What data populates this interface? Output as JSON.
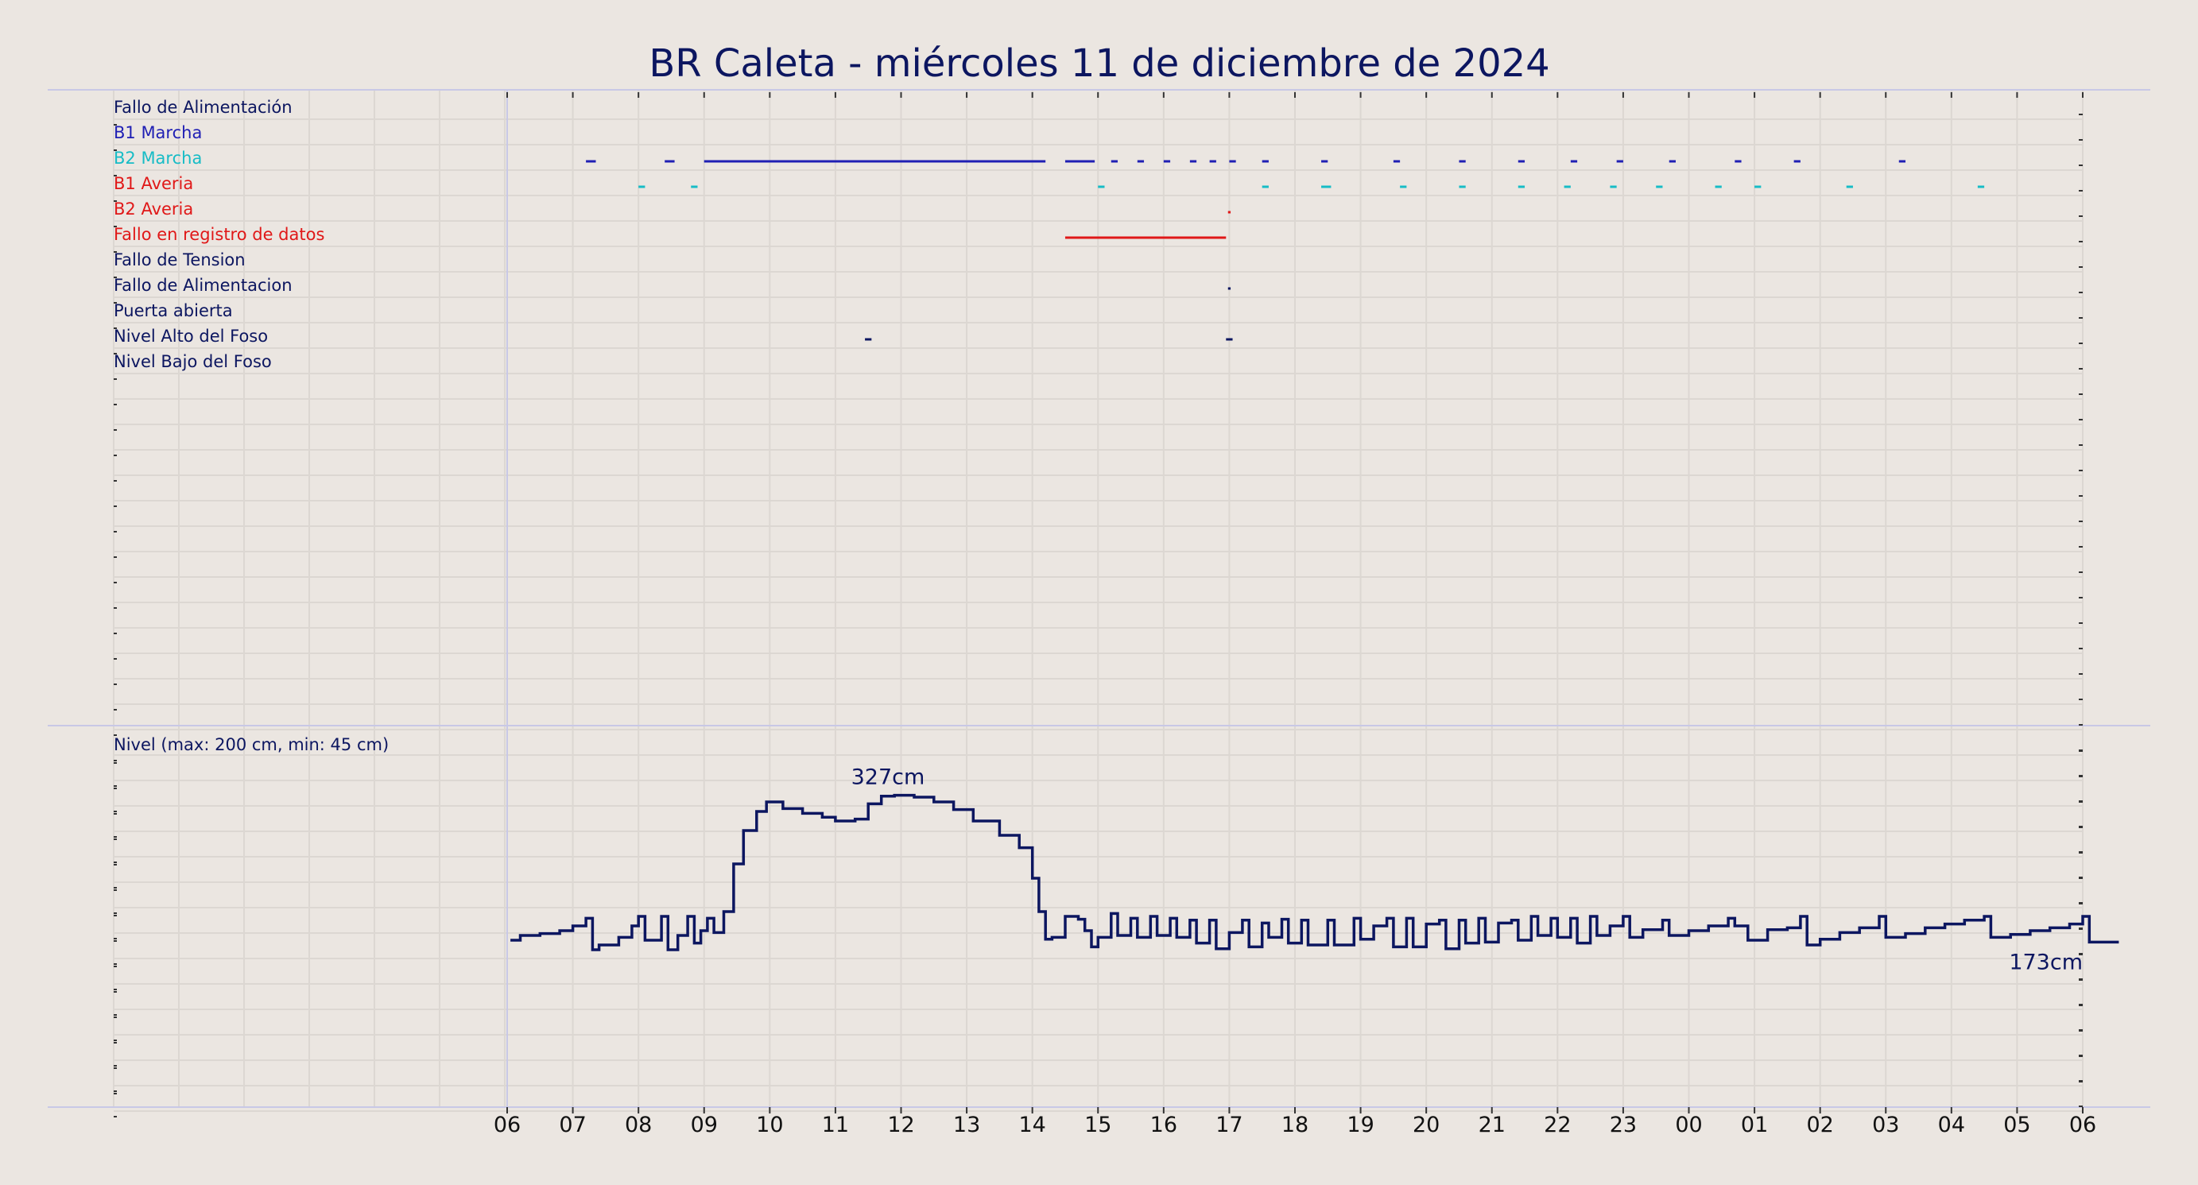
{
  "chart_data": {
    "type": "line",
    "title": "BR Caleta   -   miércoles 11 de diciembre de 2024",
    "x_axis": {
      "tick_labels": [
        "06",
        "07",
        "08",
        "09",
        "10",
        "11",
        "12",
        "13",
        "14",
        "15",
        "16",
        "17",
        "18",
        "19",
        "20",
        "21",
        "22",
        "23",
        "00",
        "01",
        "02",
        "03",
        "04",
        "05",
        "06"
      ],
      "range_hours": [
        0,
        24
      ]
    },
    "signals": [
      {
        "name": "Fallo de Alimentación",
        "color": "#0c1660",
        "segments": []
      },
      {
        "name": "B1 Marcha",
        "color": "#1f1fb4",
        "segments": [
          [
            1.2,
            1.35
          ],
          [
            2.4,
            2.55
          ],
          [
            3.0,
            8.2
          ],
          [
            8.5,
            8.95
          ],
          [
            9.2,
            9.3
          ],
          [
            9.6,
            9.7
          ],
          [
            10.0,
            10.1
          ],
          [
            10.4,
            10.5
          ],
          [
            10.7,
            10.8
          ],
          [
            11.0,
            11.1
          ],
          [
            11.5,
            11.6
          ],
          [
            12.4,
            12.5
          ],
          [
            13.5,
            13.6
          ],
          [
            14.5,
            14.6
          ],
          [
            15.4,
            15.5
          ],
          [
            16.2,
            16.3
          ],
          [
            16.9,
            17.0
          ],
          [
            17.7,
            17.8
          ],
          [
            18.7,
            18.8
          ],
          [
            19.6,
            19.7
          ],
          [
            21.2,
            21.3
          ]
        ]
      },
      {
        "name": "B2 Marcha",
        "color": "#17bcc6",
        "segments": [
          [
            2.0,
            2.1
          ],
          [
            2.8,
            2.9
          ],
          [
            9.0,
            9.1
          ],
          [
            11.5,
            11.6
          ],
          [
            12.4,
            12.55
          ],
          [
            13.6,
            13.7
          ],
          [
            14.5,
            14.6
          ],
          [
            15.4,
            15.5
          ],
          [
            16.1,
            16.2
          ],
          [
            16.8,
            16.9
          ],
          [
            17.5,
            17.6
          ],
          [
            18.4,
            18.5
          ],
          [
            19.0,
            19.1
          ],
          [
            20.4,
            20.5
          ],
          [
            22.4,
            22.5
          ]
        ]
      },
      {
        "name": "B1 Averia",
        "color": "#e01818",
        "segments": [
          [
            10.98,
            11.02
          ]
        ]
      },
      {
        "name": "B2 Averia",
        "color": "#e01818",
        "segments": [
          [
            8.5,
            10.95
          ]
        ]
      },
      {
        "name": "Fallo en registro de datos",
        "color": "#e01818",
        "segments": []
      },
      {
        "name": "Fallo de Tension",
        "color": "#0c1660",
        "segments": [
          [
            10.98,
            11.02
          ]
        ]
      },
      {
        "name": "Fallo de Alimentacion",
        "color": "#0c1660",
        "segments": []
      },
      {
        "name": "Puerta abierta",
        "color": "#0c1660",
        "segments": [
          [
            5.45,
            5.55
          ],
          [
            10.95,
            11.05
          ]
        ]
      },
      {
        "name": "Nivel Alto del Foso",
        "color": "#0c1660",
        "segments": []
      },
      {
        "name": "Nivel Bajo del Foso",
        "color": "#0c1660",
        "segments": []
      }
    ],
    "level": {
      "label": "Nivel (max: 200 cm, min: 45 cm)",
      "unit": "cm",
      "line_color": "#0c1660",
      "max_label": "327cm",
      "last_label": "173cm",
      "max_value_hour": 5.8,
      "y_range": [
        0,
        400
      ],
      "points": [
        [
          0.05,
          175
        ],
        [
          0.2,
          180
        ],
        [
          0.5,
          182
        ],
        [
          0.8,
          185
        ],
        [
          1.0,
          190
        ],
        [
          1.2,
          198
        ],
        [
          1.3,
          165
        ],
        [
          1.4,
          170
        ],
        [
          1.7,
          178
        ],
        [
          1.9,
          190
        ],
        [
          2.0,
          200
        ],
        [
          2.1,
          175
        ],
        [
          2.35,
          200
        ],
        [
          2.45,
          165
        ],
        [
          2.6,
          180
        ],
        [
          2.75,
          200
        ],
        [
          2.85,
          172
        ],
        [
          2.95,
          185
        ],
        [
          3.05,
          198
        ],
        [
          3.15,
          183
        ],
        [
          3.3,
          205
        ],
        [
          3.45,
          255
        ],
        [
          3.6,
          290
        ],
        [
          3.8,
          310
        ],
        [
          3.95,
          320
        ],
        [
          4.2,
          313
        ],
        [
          4.5,
          308
        ],
        [
          4.8,
          304
        ],
        [
          5.0,
          300
        ],
        [
          5.3,
          302
        ],
        [
          5.5,
          318
        ],
        [
          5.7,
          326
        ],
        [
          5.9,
          327
        ],
        [
          6.2,
          325
        ],
        [
          6.5,
          320
        ],
        [
          6.8,
          312
        ],
        [
          7.1,
          300
        ],
        [
          7.5,
          285
        ],
        [
          7.8,
          272
        ],
        [
          8.0,
          240
        ],
        [
          8.1,
          205
        ],
        [
          8.2,
          176
        ],
        [
          8.3,
          178
        ],
        [
          8.5,
          200
        ],
        [
          8.7,
          197
        ],
        [
          8.8,
          185
        ],
        [
          8.9,
          168
        ],
        [
          9.0,
          178
        ],
        [
          9.2,
          203
        ],
        [
          9.3,
          180
        ],
        [
          9.5,
          198
        ],
        [
          9.6,
          178
        ],
        [
          9.8,
          200
        ],
        [
          9.9,
          180
        ],
        [
          10.1,
          198
        ],
        [
          10.2,
          178
        ],
        [
          10.4,
          196
        ],
        [
          10.5,
          172
        ],
        [
          10.7,
          196
        ],
        [
          10.8,
          166
        ],
        [
          11.0,
          183
        ],
        [
          11.2,
          196
        ],
        [
          11.3,
          168
        ],
        [
          11.5,
          193
        ],
        [
          11.6,
          178
        ],
        [
          11.8,
          197
        ],
        [
          11.9,
          172
        ],
        [
          12.1,
          196
        ],
        [
          12.2,
          170
        ],
        [
          12.5,
          196
        ],
        [
          12.6,
          170
        ],
        [
          12.9,
          198
        ],
        [
          13.0,
          176
        ],
        [
          13.2,
          190
        ],
        [
          13.4,
          198
        ],
        [
          13.5,
          168
        ],
        [
          13.7,
          198
        ],
        [
          13.8,
          168
        ],
        [
          14.0,
          192
        ],
        [
          14.2,
          196
        ],
        [
          14.3,
          166
        ],
        [
          14.5,
          196
        ],
        [
          14.6,
          172
        ],
        [
          14.8,
          198
        ],
        [
          14.9,
          173
        ],
        [
          15.1,
          193
        ],
        [
          15.3,
          196
        ],
        [
          15.4,
          175
        ],
        [
          15.6,
          200
        ],
        [
          15.7,
          180
        ],
        [
          15.9,
          198
        ],
        [
          16.0,
          178
        ],
        [
          16.2,
          198
        ],
        [
          16.3,
          172
        ],
        [
          16.5,
          200
        ],
        [
          16.6,
          180
        ],
        [
          16.8,
          190
        ],
        [
          17.0,
          200
        ],
        [
          17.1,
          178
        ],
        [
          17.3,
          186
        ],
        [
          17.6,
          196
        ],
        [
          17.7,
          180
        ],
        [
          18.0,
          185
        ],
        [
          18.3,
          190
        ],
        [
          18.6,
          198
        ],
        [
          18.7,
          190
        ],
        [
          18.9,
          175
        ],
        [
          19.2,
          186
        ],
        [
          19.5,
          188
        ],
        [
          19.7,
          200
        ],
        [
          19.8,
          170
        ],
        [
          20.0,
          176
        ],
        [
          20.3,
          183
        ],
        [
          20.6,
          188
        ],
        [
          20.9,
          200
        ],
        [
          21.0,
          178
        ],
        [
          21.3,
          182
        ],
        [
          21.6,
          188
        ],
        [
          21.9,
          192
        ],
        [
          22.2,
          196
        ],
        [
          22.5,
          200
        ],
        [
          22.6,
          178
        ],
        [
          22.9,
          181
        ],
        [
          23.2,
          185
        ],
        [
          23.5,
          188
        ],
        [
          23.8,
          192
        ],
        [
          24.0,
          200
        ],
        [
          24.1,
          173
        ],
        [
          24.4,
          173
        ],
        [
          24.55,
          173
        ]
      ]
    }
  }
}
